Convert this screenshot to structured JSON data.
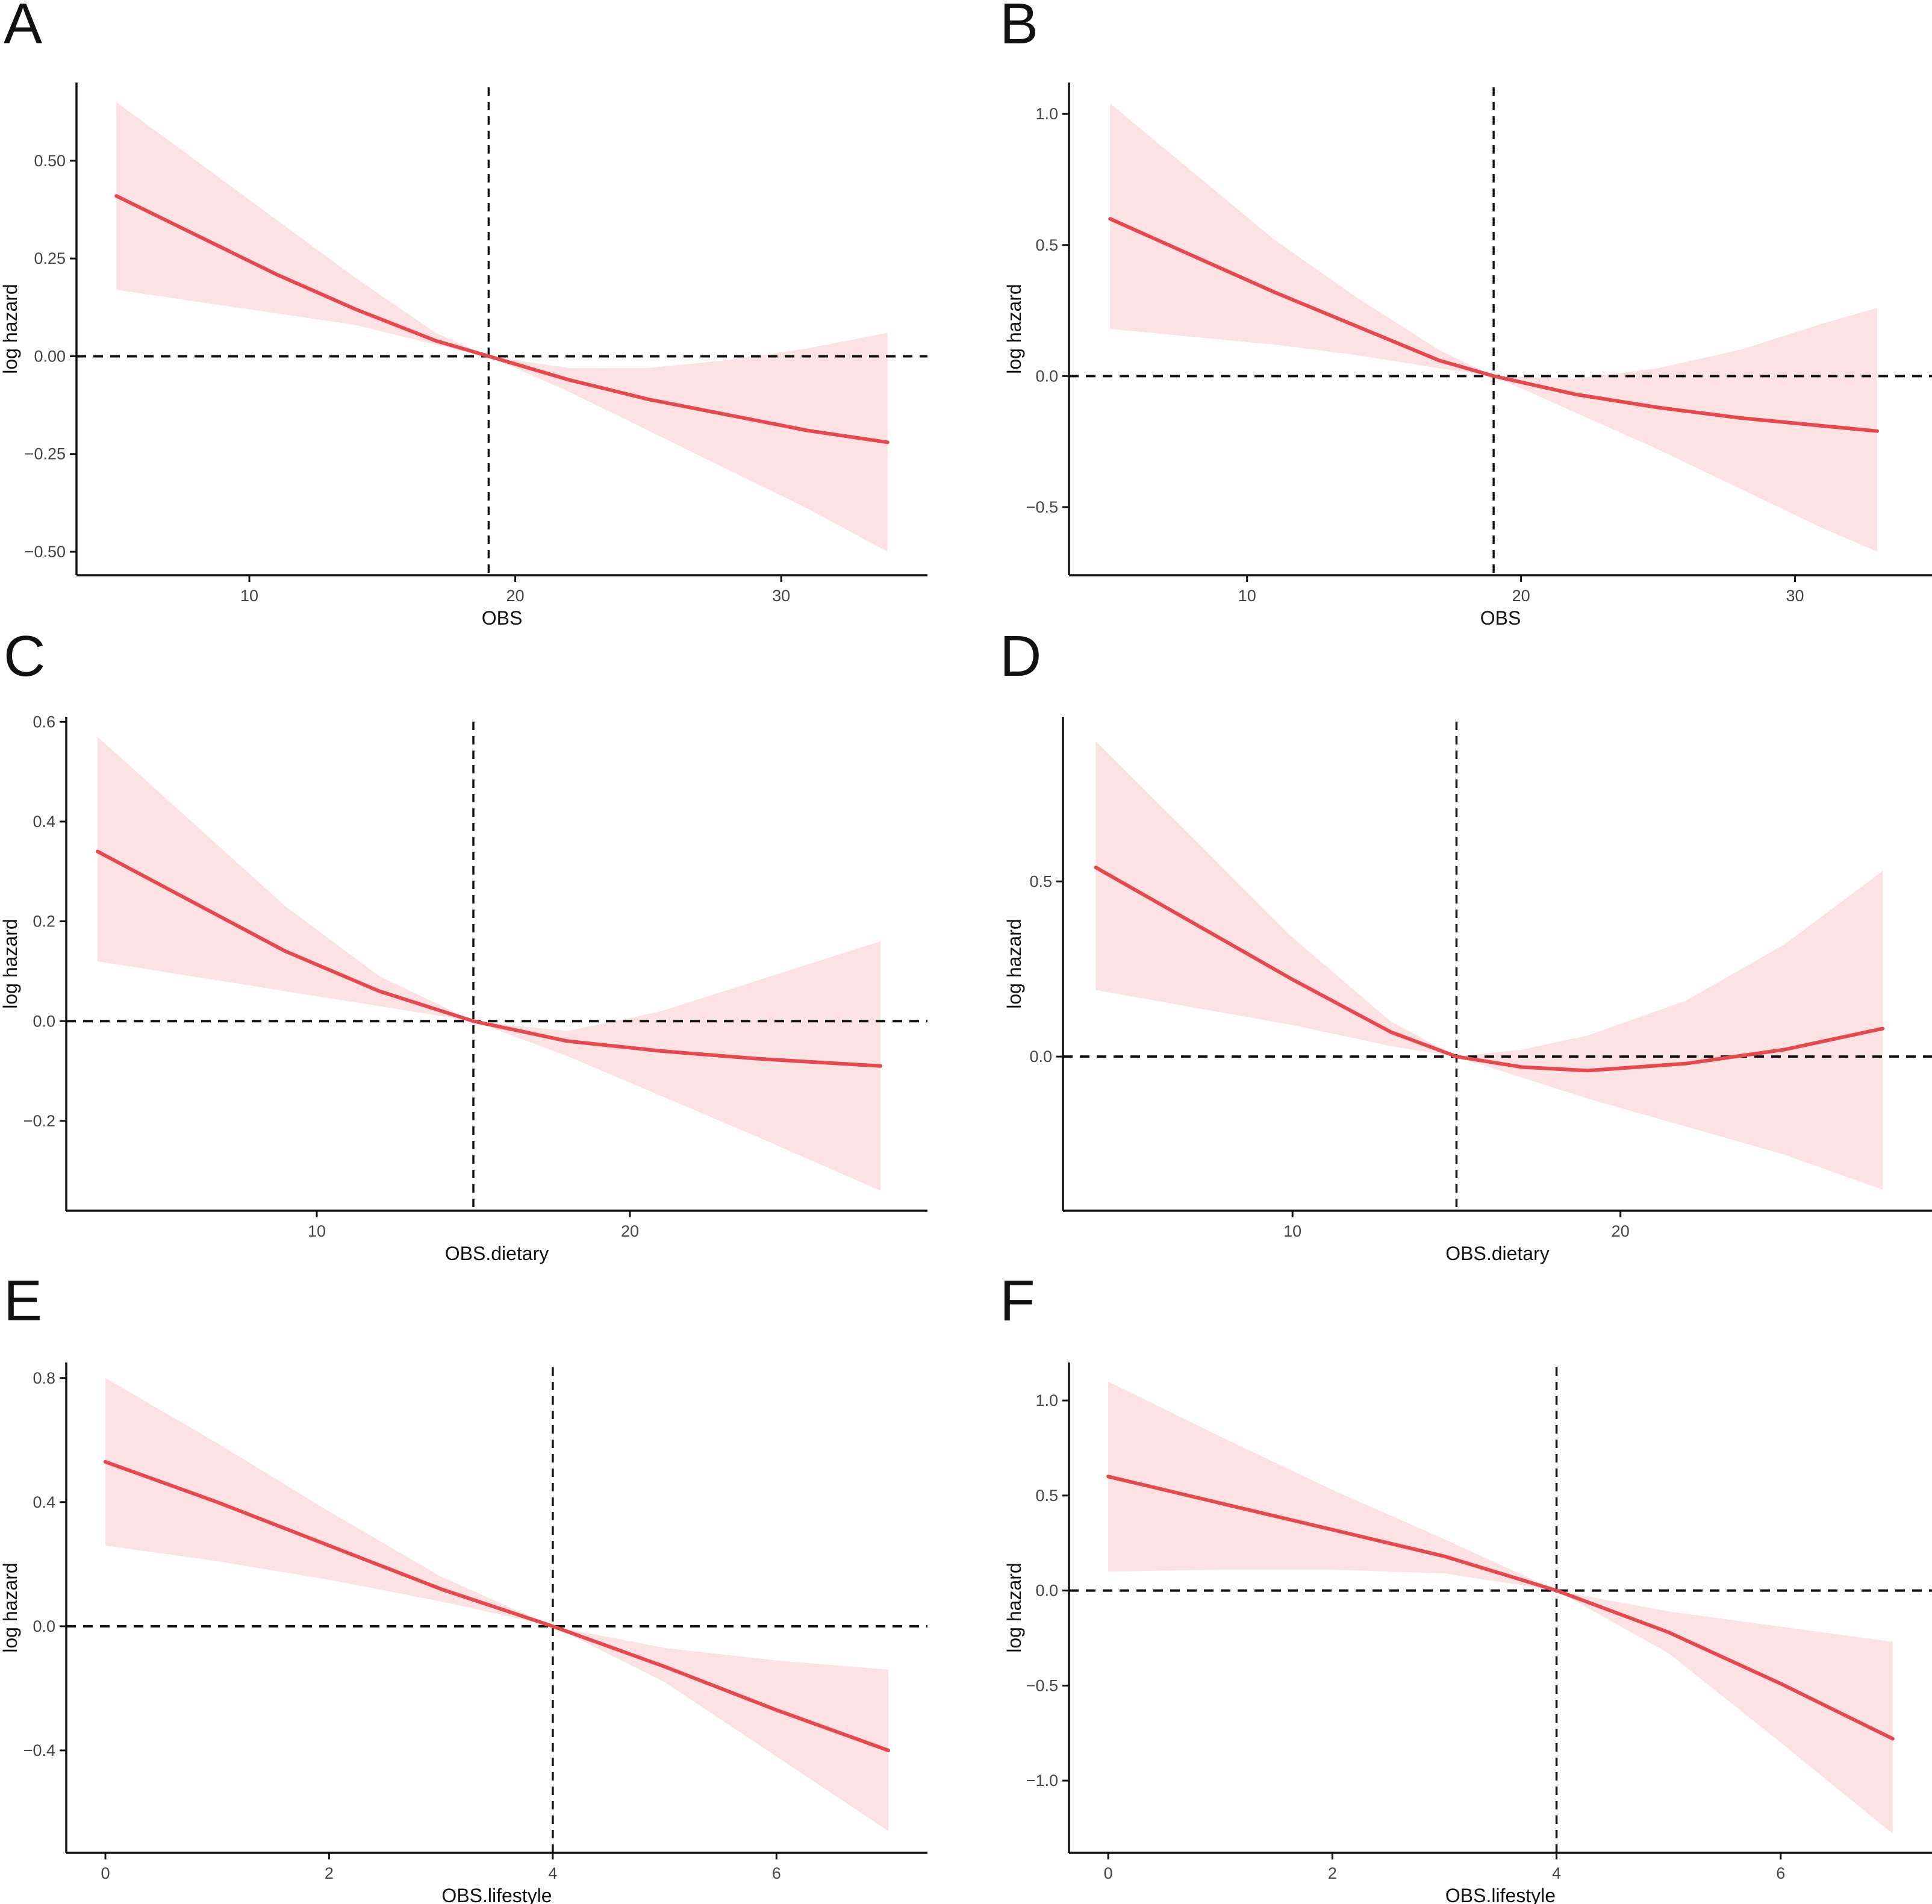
{
  "figure": {
    "colors": {
      "line": "#E8474B",
      "band": "#FDE2E4",
      "axis": "#111111",
      "text": "#444444"
    }
  },
  "chart_data": [
    {
      "panel": "A",
      "type": "line",
      "xlabel": "OBS",
      "ylabel": "log hazard",
      "xlim": [
        3.5,
        35.5
      ],
      "ylim": [
        -0.56,
        0.7
      ],
      "xticks": [
        10,
        20,
        30
      ],
      "xtick_labels": [
        "10",
        "20",
        "30"
      ],
      "yticks": [
        -0.5,
        -0.25,
        0,
        0.25,
        0.5
      ],
      "ytick_labels": [
        "−0.50",
        "−0.25",
        "0.00",
        "0.25",
        "0.50"
      ],
      "ref_x": 19,
      "ref_y": 0,
      "series": [
        {
          "name": "log hazard",
          "x": [
            5,
            8,
            11,
            14,
            17,
            19,
            22,
            25,
            28,
            31,
            34
          ],
          "y": [
            0.41,
            0.31,
            0.21,
            0.12,
            0.04,
            0.0,
            -0.06,
            -0.11,
            -0.15,
            -0.19,
            -0.22
          ],
          "lower": [
            0.17,
            0.14,
            0.11,
            0.08,
            0.03,
            0.0,
            -0.09,
            -0.19,
            -0.29,
            -0.39,
            -0.5
          ],
          "upper": [
            0.65,
            0.5,
            0.35,
            0.2,
            0.06,
            0.0,
            -0.03,
            -0.03,
            -0.01,
            0.02,
            0.06
          ]
        }
      ]
    },
    {
      "panel": "B",
      "type": "line",
      "xlabel": "OBS",
      "ylabel": "log hazard",
      "xlim": [
        3.5,
        35
      ],
      "ylim": [
        -0.76,
        1.12
      ],
      "xticks": [
        10,
        20,
        30
      ],
      "xtick_labels": [
        "10",
        "20",
        "30"
      ],
      "yticks": [
        -0.5,
        0,
        0.5,
        1.0
      ],
      "ytick_labels": [
        "−0.5",
        "0.0",
        "0.5",
        "1.0"
      ],
      "ref_x": 19,
      "ref_y": 0,
      "series": [
        {
          "name": "log hazard",
          "x": [
            5,
            8,
            11,
            14,
            17,
            19,
            22,
            25,
            28,
            31,
            33
          ],
          "y": [
            0.6,
            0.46,
            0.32,
            0.19,
            0.06,
            0.0,
            -0.07,
            -0.12,
            -0.16,
            -0.19,
            -0.21
          ],
          "lower": [
            0.18,
            0.15,
            0.12,
            0.08,
            0.03,
            0.0,
            -0.14,
            -0.28,
            -0.43,
            -0.58,
            -0.67
          ],
          "upper": [
            1.04,
            0.78,
            0.52,
            0.3,
            0.1,
            0.0,
            -0.01,
            0.03,
            0.1,
            0.2,
            0.26
          ]
        }
      ]
    },
    {
      "panel": "C",
      "type": "line",
      "xlabel": "OBS.dietary",
      "ylabel": "log hazard",
      "xlim": [
        2,
        29.5
      ],
      "ylim": [
        -0.38,
        0.61
      ],
      "xticks": [
        10,
        20
      ],
      "xtick_labels": [
        "10",
        "20"
      ],
      "yticks": [
        -0.2,
        0,
        0.2,
        0.4,
        0.6
      ],
      "ytick_labels": [
        "−0.2",
        "0.0",
        "0.2",
        "0.4",
        "0.6"
      ],
      "ref_x": 15,
      "ref_y": 0,
      "series": [
        {
          "name": "log hazard",
          "x": [
            3,
            6,
            9,
            12,
            15,
            18,
            21,
            24,
            28
          ],
          "y": [
            0.34,
            0.24,
            0.14,
            0.06,
            0.0,
            -0.04,
            -0.06,
            -0.075,
            -0.09
          ],
          "lower": [
            0.12,
            0.09,
            0.06,
            0.03,
            0.0,
            -0.07,
            -0.15,
            -0.23,
            -0.34
          ],
          "upper": [
            0.57,
            0.4,
            0.23,
            0.09,
            0.0,
            -0.02,
            0.02,
            0.08,
            0.16
          ]
        }
      ]
    },
    {
      "panel": "D",
      "type": "line",
      "xlabel": "OBS.dietary",
      "ylabel": "log hazard",
      "xlim": [
        3,
        29.5
      ],
      "ylim": [
        -0.44,
        0.97
      ],
      "xticks": [
        10,
        20
      ],
      "xtick_labels": [
        "10",
        "20"
      ],
      "yticks": [
        0,
        0.5
      ],
      "ytick_labels": [
        "0.0",
        "0.5"
      ],
      "ref_x": 15,
      "ref_y": 0,
      "series": [
        {
          "name": "log hazard",
          "x": [
            4,
            7,
            10,
            13,
            15,
            17,
            19,
            22,
            25,
            28
          ],
          "y": [
            0.54,
            0.38,
            0.22,
            0.07,
            0.0,
            -0.03,
            -0.04,
            -0.02,
            0.02,
            0.08
          ],
          "lower": [
            0.19,
            0.14,
            0.09,
            0.03,
            0.0,
            -0.06,
            -0.12,
            -0.2,
            -0.28,
            -0.38
          ],
          "upper": [
            0.9,
            0.62,
            0.34,
            0.1,
            0.0,
            0.02,
            0.06,
            0.16,
            0.32,
            0.53
          ]
        }
      ]
    },
    {
      "panel": "E",
      "type": "line",
      "xlabel": "OBS.lifestyle",
      "ylabel": "log hazard",
      "xlim": [
        -0.35,
        7.35
      ],
      "ylim": [
        -0.73,
        0.85
      ],
      "xticks": [
        0,
        2,
        4,
        6
      ],
      "xtick_labels": [
        "0",
        "2",
        "4",
        "6"
      ],
      "yticks": [
        -0.4,
        0,
        0.4,
        0.8
      ],
      "ytick_labels": [
        "−0.4",
        "0.0",
        "0.4",
        "0.8"
      ],
      "ref_x": 4,
      "ref_y": 0,
      "series": [
        {
          "name": "log hazard",
          "x": [
            0,
            1,
            2,
            3,
            4,
            5,
            6,
            7
          ],
          "y": [
            0.53,
            0.4,
            0.26,
            0.12,
            0.0,
            -0.13,
            -0.27,
            -0.4
          ],
          "lower": [
            0.26,
            0.21,
            0.15,
            0.08,
            0.0,
            -0.18,
            -0.42,
            -0.66
          ],
          "upper": [
            0.8,
            0.59,
            0.37,
            0.16,
            0.0,
            -0.07,
            -0.11,
            -0.14
          ]
        }
      ]
    },
    {
      "panel": "F",
      "type": "line",
      "xlabel": "OBS.lifestyle",
      "ylabel": "log hazard",
      "xlim": [
        -0.35,
        7.35
      ],
      "ylim": [
        -1.38,
        1.2
      ],
      "xticks": [
        0,
        2,
        4,
        6
      ],
      "xtick_labels": [
        "0",
        "2",
        "4",
        "6"
      ],
      "yticks": [
        -1.0,
        -0.5,
        0,
        0.5,
        1.0
      ],
      "ytick_labels": [
        "−1.0",
        "−0.5",
        "0.0",
        "0.5",
        "1.0"
      ],
      "ref_x": 4,
      "ref_y": 0,
      "series": [
        {
          "name": "log hazard",
          "x": [
            0,
            1,
            2,
            3,
            4,
            5,
            6,
            7
          ],
          "y": [
            0.6,
            0.46,
            0.32,
            0.18,
            0.0,
            -0.22,
            -0.49,
            -0.78
          ],
          "lower": [
            0.1,
            0.11,
            0.11,
            0.09,
            0.0,
            -0.33,
            -0.8,
            -1.28
          ],
          "upper": [
            1.1,
            0.81,
            0.53,
            0.27,
            0.0,
            -0.11,
            -0.19,
            -0.27
          ]
        }
      ]
    }
  ]
}
